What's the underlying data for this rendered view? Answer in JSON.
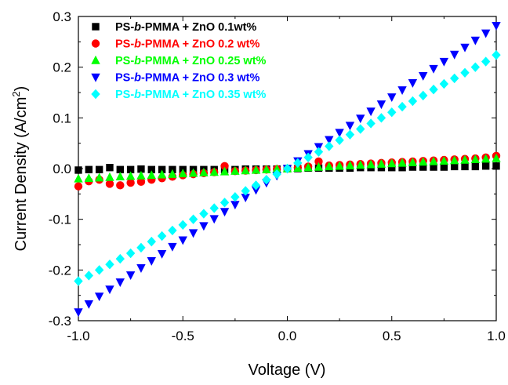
{
  "chart_data": {
    "type": "scatter",
    "xlabel": "Voltage (V)",
    "ylabel_main": "Current Density (A/cm",
    "ylabel_sup": "2",
    "ylabel_close": ")",
    "xlim": [
      -1.0,
      1.0
    ],
    "ylim": [
      -0.3,
      0.3
    ],
    "x_ticks": [
      "-1.0",
      "-0.5",
      "0.0",
      "0.5",
      "1.0"
    ],
    "y_ticks": [
      "0.3",
      "0.2",
      "0.1",
      "0.0",
      "-0.1",
      "-0.2",
      "-0.3"
    ],
    "legend_position": "top-left",
    "series": [
      {
        "name": "PS-b-PMMA + ZnO 0.1wt%",
        "legend_parts": [
          "PS-",
          "b",
          "-PMMA + ZnO 0.1wt%"
        ],
        "marker": "square",
        "color": "#000000",
        "x": [
          -1.0,
          -0.95,
          -0.9,
          -0.85,
          -0.8,
          -0.75,
          -0.7,
          -0.65,
          -0.6,
          -0.55,
          -0.5,
          -0.45,
          -0.4,
          -0.35,
          -0.3,
          -0.25,
          -0.2,
          -0.15,
          -0.1,
          -0.05,
          0.0,
          0.05,
          0.1,
          0.15,
          0.2,
          0.25,
          0.3,
          0.35,
          0.4,
          0.45,
          0.5,
          0.55,
          0.6,
          0.65,
          0.7,
          0.75,
          0.8,
          0.85,
          0.9,
          0.95,
          1.0
        ],
        "y": [
          -0.003,
          -0.002,
          -0.002,
          0.002,
          -0.002,
          -0.002,
          -0.001,
          -0.002,
          -0.002,
          -0.002,
          -0.002,
          -0.002,
          -0.002,
          -0.002,
          -0.002,
          -0.002,
          -0.001,
          -0.001,
          -0.001,
          -0.001,
          0.0,
          0.0,
          0.001,
          0.001,
          0.001,
          0.001,
          0.001,
          0.002,
          0.002,
          0.002,
          0.002,
          0.002,
          0.003,
          0.003,
          0.003,
          0.003,
          0.004,
          0.004,
          0.004,
          0.005,
          0.005
        ]
      },
      {
        "name": "PS-b-PMMA + ZnO 0.2 wt%",
        "legend_parts": [
          "PS-",
          "b",
          "-PMMA + ZnO 0.2 wt%"
        ],
        "marker": "circle",
        "color": "#ff0000",
        "x": [
          -1.0,
          -0.95,
          -0.9,
          -0.85,
          -0.8,
          -0.75,
          -0.7,
          -0.65,
          -0.6,
          -0.55,
          -0.5,
          -0.45,
          -0.4,
          -0.35,
          -0.3,
          -0.25,
          -0.2,
          -0.15,
          -0.1,
          -0.05,
          0.0,
          0.05,
          0.1,
          0.15,
          0.2,
          0.25,
          0.3,
          0.35,
          0.4,
          0.45,
          0.5,
          0.55,
          0.6,
          0.65,
          0.7,
          0.75,
          0.8,
          0.85,
          0.9,
          0.95,
          1.0
        ],
        "y": [
          -0.035,
          -0.025,
          -0.022,
          -0.03,
          -0.033,
          -0.028,
          -0.026,
          -0.022,
          -0.019,
          -0.016,
          -0.013,
          -0.011,
          -0.009,
          -0.007,
          0.005,
          -0.005,
          -0.004,
          -0.003,
          -0.002,
          -0.001,
          0.0,
          0.002,
          0.004,
          0.014,
          0.006,
          0.007,
          0.008,
          0.009,
          0.01,
          0.011,
          0.012,
          0.013,
          0.014,
          0.015,
          0.016,
          0.017,
          0.018,
          0.019,
          0.02,
          0.022,
          0.025
        ]
      },
      {
        "name": "PS-b-PMMA + ZnO 0.25 wt%",
        "legend_parts": [
          "PS-",
          "b",
          "-PMMA + ZnO 0.25 wt%"
        ],
        "marker": "triangle-up",
        "color": "#00ff00",
        "x": [
          -1.0,
          -0.95,
          -0.9,
          -0.85,
          -0.8,
          -0.75,
          -0.7,
          -0.65,
          -0.6,
          -0.55,
          -0.5,
          -0.45,
          -0.4,
          -0.35,
          -0.3,
          -0.25,
          -0.2,
          -0.15,
          -0.1,
          -0.05,
          0.0,
          0.05,
          0.1,
          0.15,
          0.2,
          0.25,
          0.3,
          0.35,
          0.4,
          0.45,
          0.5,
          0.55,
          0.6,
          0.65,
          0.7,
          0.75,
          0.8,
          0.85,
          0.9,
          0.95,
          1.0
        ],
        "y": [
          -0.02,
          -0.019,
          -0.018,
          -0.017,
          -0.016,
          -0.015,
          -0.014,
          -0.013,
          -0.012,
          -0.011,
          -0.01,
          -0.009,
          -0.008,
          -0.007,
          -0.006,
          -0.005,
          -0.004,
          -0.003,
          -0.002,
          -0.001,
          0.0,
          0.001,
          0.002,
          0.003,
          0.004,
          0.005,
          0.006,
          0.007,
          0.008,
          0.009,
          0.01,
          0.011,
          0.012,
          0.013,
          0.014,
          0.015,
          0.016,
          0.017,
          0.018,
          0.019,
          0.02
        ]
      },
      {
        "name": "PS-b-PMMA + ZnO 0.3 wt%",
        "legend_parts": [
          "PS-",
          "b",
          "-PMMA + ZnO 0.3 wt%"
        ],
        "marker": "triangle-down",
        "color": "#0000ff",
        "x": [
          -1.0,
          -0.95,
          -0.9,
          -0.85,
          -0.8,
          -0.75,
          -0.7,
          -0.65,
          -0.6,
          -0.55,
          -0.5,
          -0.45,
          -0.4,
          -0.35,
          -0.3,
          -0.25,
          -0.2,
          -0.15,
          -0.1,
          -0.05,
          0.0,
          0.05,
          0.1,
          0.15,
          0.2,
          0.25,
          0.3,
          0.35,
          0.4,
          0.45,
          0.5,
          0.55,
          0.6,
          0.65,
          0.7,
          0.75,
          0.8,
          0.85,
          0.9,
          0.95,
          1.0
        ],
        "y": [
          -0.283,
          -0.267,
          -0.252,
          -0.238,
          -0.224,
          -0.21,
          -0.196,
          -0.182,
          -0.168,
          -0.154,
          -0.141,
          -0.127,
          -0.113,
          -0.099,
          -0.085,
          -0.071,
          -0.057,
          -0.042,
          -0.028,
          -0.014,
          0.0,
          0.015,
          0.029,
          0.043,
          0.057,
          0.071,
          0.085,
          0.099,
          0.113,
          0.127,
          0.141,
          0.155,
          0.169,
          0.183,
          0.197,
          0.211,
          0.225,
          0.239,
          0.253,
          0.267,
          0.282
        ]
      },
      {
        "name": "PS-b-PMMA + ZnO 0.35 wt%",
        "legend_parts": [
          "PS-",
          "b",
          "-PMMA + ZnO 0.35 wt%"
        ],
        "marker": "diamond",
        "color": "#00ffff",
        "x": [
          -1.0,
          -0.95,
          -0.9,
          -0.85,
          -0.8,
          -0.75,
          -0.7,
          -0.65,
          -0.6,
          -0.55,
          -0.5,
          -0.45,
          -0.4,
          -0.35,
          -0.3,
          -0.25,
          -0.2,
          -0.15,
          -0.1,
          -0.05,
          0.0,
          0.05,
          0.1,
          0.15,
          0.2,
          0.25,
          0.3,
          0.35,
          0.4,
          0.45,
          0.5,
          0.55,
          0.6,
          0.65,
          0.7,
          0.75,
          0.8,
          0.85,
          0.9,
          0.95,
          1.0
        ],
        "y": [
          -0.222,
          -0.211,
          -0.2,
          -0.189,
          -0.178,
          -0.167,
          -0.156,
          -0.144,
          -0.133,
          -0.122,
          -0.111,
          -0.1,
          -0.089,
          -0.078,
          -0.067,
          -0.056,
          -0.044,
          -0.033,
          -0.022,
          -0.011,
          0.0,
          0.011,
          0.022,
          0.033,
          0.044,
          0.056,
          0.067,
          0.078,
          0.089,
          0.1,
          0.111,
          0.122,
          0.133,
          0.144,
          0.156,
          0.167,
          0.178,
          0.189,
          0.2,
          0.211,
          0.224
        ]
      }
    ]
  }
}
